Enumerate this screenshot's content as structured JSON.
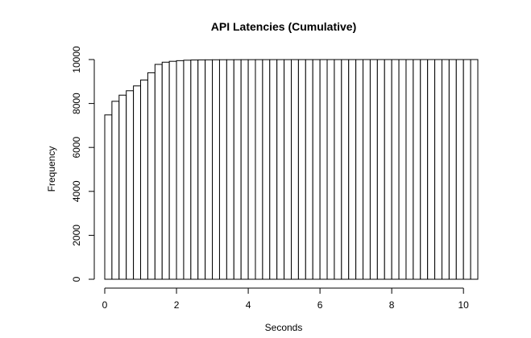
{
  "chart_data": {
    "type": "bar",
    "title": "API Latencies (Cumulative)",
    "xlabel": "Seconds",
    "ylabel": "Frequency",
    "bin_width": 0.2,
    "x_start": 0.0,
    "xlim": [
      0,
      10.4
    ],
    "ylim": [
      0,
      10000
    ],
    "xticks": [
      0,
      2,
      4,
      6,
      8,
      10
    ],
    "yticks": [
      0,
      2000,
      4000,
      6000,
      8000,
      10000
    ],
    "values": [
      7480,
      8100,
      8380,
      8580,
      8800,
      9070,
      9400,
      9780,
      9880,
      9920,
      9950,
      9970,
      9980,
      9985,
      9988,
      9990,
      9992,
      9993,
      9994,
      9995,
      9995,
      9996,
      9996,
      9997,
      9997,
      9997,
      9998,
      9998,
      9998,
      9998,
      9999,
      9999,
      9999,
      9999,
      9999,
      9999,
      10000,
      10000,
      10000,
      10000,
      10000,
      10000,
      10000,
      10000,
      10000,
      10000,
      10000,
      10000,
      10000,
      10000,
      10000,
      10000
    ],
    "grid": false,
    "legend": false
  }
}
